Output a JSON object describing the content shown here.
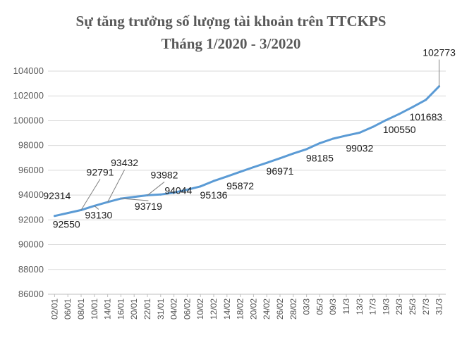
{
  "chart_data": {
    "type": "line",
    "title": "Sự tăng trưởng số lượng tài khoản trên TTCKPS",
    "subtitle": "Tháng 1/2020 - 3/2020",
    "xlabel": "",
    "ylabel": "",
    "ylim": [
      86000,
      104000
    ],
    "yticks": [
      86000,
      88000,
      90000,
      92000,
      94000,
      96000,
      98000,
      100000,
      102000,
      104000
    ],
    "grid": true,
    "legend": "none",
    "line_color": "#5b9bd5",
    "x_tick_labels": [
      "02/01",
      "06/01",
      "08/01",
      "10/01",
      "14/01",
      "16/01",
      "20/01",
      "22/01",
      "31/01",
      "04/02",
      "06/02",
      "10/02",
      "12/02",
      "14/02",
      "18/02",
      "20/02",
      "24/02",
      "26/02",
      "28/02",
      "03/3",
      "05/3",
      "09/3",
      "11/3",
      "13/3",
      "17/3",
      "19/3",
      "23/3",
      "25/3",
      "27/3",
      "31/3"
    ],
    "series": [
      {
        "values": [
          92314,
          92550,
          92791,
          93130,
          93432,
          93719,
          93850,
          93982,
          94044,
          94200,
          94430,
          94700,
          95136,
          95500,
          95872,
          96250,
          96600,
          96971,
          97350,
          97700,
          98185,
          98550,
          98800,
          99032,
          99500,
          100050,
          100550,
          101100,
          101683,
          102773
        ]
      }
    ],
    "data_labels": [
      {
        "index": 0,
        "text": "92314"
      },
      {
        "index": 2,
        "text": "92791"
      },
      {
        "index": 1,
        "text": "92550"
      },
      {
        "index": 3,
        "text": "93130"
      },
      {
        "index": 4,
        "text": "93432"
      },
      {
        "index": 5,
        "text": "93719"
      },
      {
        "index": 7,
        "text": "93982"
      },
      {
        "index": 8,
        "text": "94044"
      },
      {
        "index": 12,
        "text": "95136"
      },
      {
        "index": 14,
        "text": "95872"
      },
      {
        "index": 17,
        "text": "96971"
      },
      {
        "index": 20,
        "text": "98185"
      },
      {
        "index": 23,
        "text": "99032"
      },
      {
        "index": 26,
        "text": "100550"
      },
      {
        "index": 28,
        "text": "101683"
      },
      {
        "index": 29,
        "text": "102773"
      }
    ]
  }
}
